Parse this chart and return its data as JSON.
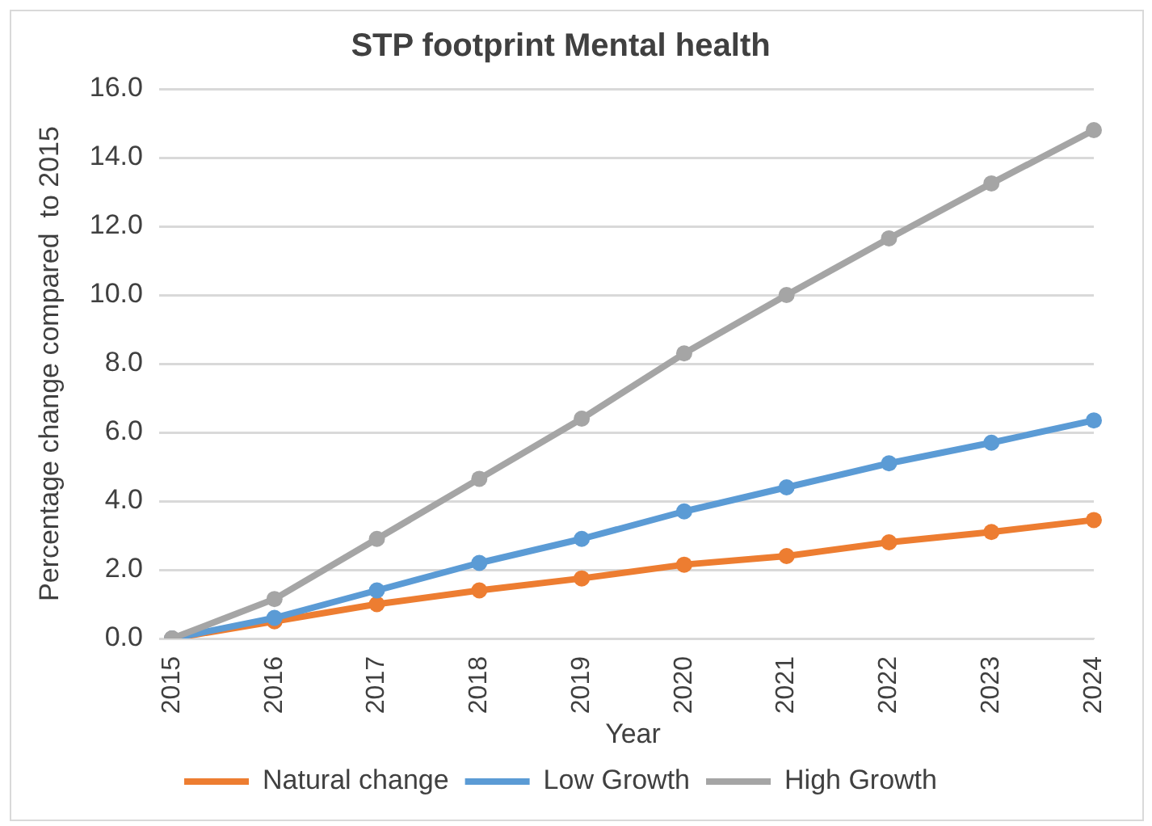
{
  "chart_data": {
    "type": "line",
    "title": "STP footprint Mental health",
    "xlabel": "Year",
    "ylabel": "Percentage change compared  to 2015",
    "categories": [
      "2015",
      "2016",
      "2017",
      "2018",
      "2019",
      "2020",
      "2021",
      "2022",
      "2023",
      "2024"
    ],
    "series": [
      {
        "name": "Natural change",
        "color": "#ed7d31",
        "values": [
          0,
          0.5,
          1.0,
          1.4,
          1.75,
          2.15,
          2.4,
          2.8,
          3.1,
          3.45
        ]
      },
      {
        "name": "Low Growth",
        "color": "#5b9bd5",
        "values": [
          0,
          0.6,
          1.4,
          2.2,
          2.9,
          3.7,
          4.4,
          5.1,
          5.7,
          6.35
        ]
      },
      {
        "name": "High Growth",
        "color": "#a5a5a5",
        "values": [
          0,
          1.15,
          2.9,
          4.65,
          6.4,
          8.3,
          10.0,
          11.65,
          13.25,
          14.8
        ]
      }
    ],
    "ylim": [
      0,
      16
    ],
    "yticks": [
      {
        "value": 0,
        "label": "0.0"
      },
      {
        "value": 2,
        "label": "2.0"
      },
      {
        "value": 4,
        "label": "4.0"
      },
      {
        "value": 6,
        "label": "6.0"
      },
      {
        "value": 8,
        "label": "8.0"
      },
      {
        "value": 10,
        "label": "10.0"
      },
      {
        "value": 12,
        "label": "12.0"
      },
      {
        "value": 14,
        "label": "14.0"
      },
      {
        "value": 16,
        "label": "16.0"
      }
    ],
    "grid": "y",
    "legend": "bottom",
    "marker": "circle",
    "line_style": "solid"
  }
}
